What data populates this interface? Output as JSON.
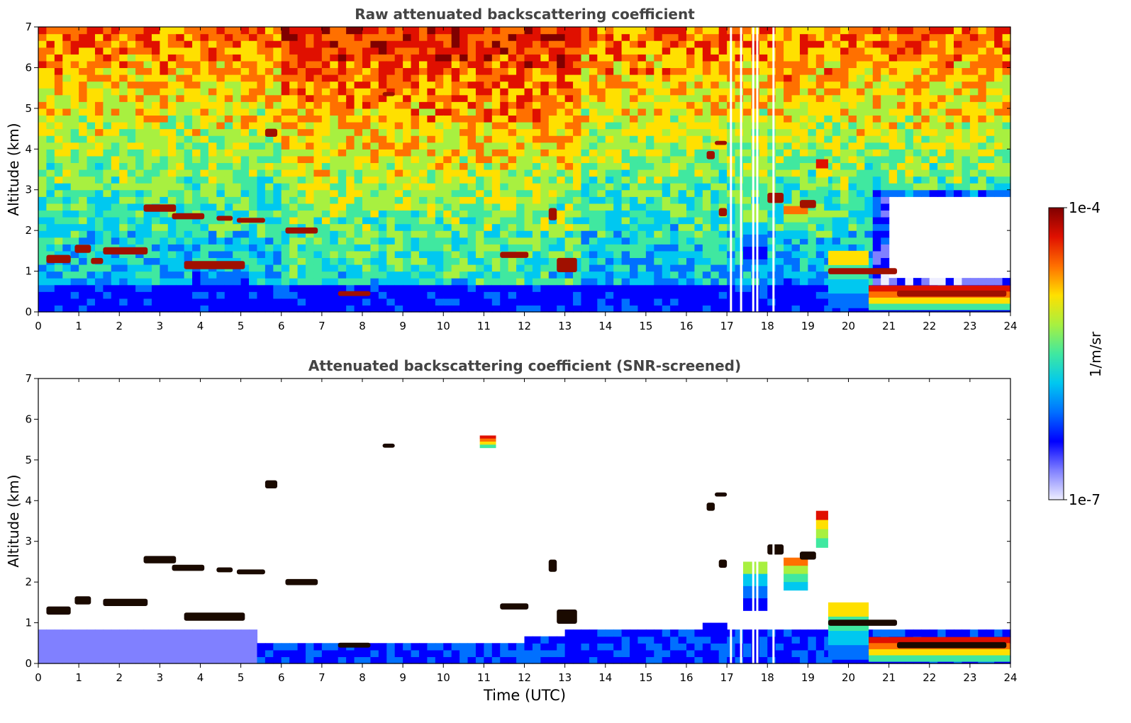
{
  "chart_data": [
    {
      "type": "heatmap",
      "title": "Raw attenuated backscattering coefficient",
      "xlabel": "",
      "ylabel": "Altitude (km)",
      "xlim": [
        0,
        24
      ],
      "ylim": [
        0,
        7
      ],
      "x_ticks": [
        "0",
        "1",
        "2",
        "3",
        "4",
        "5",
        "6",
        "7",
        "8",
        "9",
        "10",
        "11",
        "12",
        "13",
        "14",
        "15",
        "16",
        "17",
        "18",
        "19",
        "20",
        "21",
        "22",
        "23",
        "24"
      ],
      "y_ticks": [
        "0",
        "1",
        "2",
        "3",
        "4",
        "5",
        "6",
        "7"
      ],
      "background": "noisy",
      "features": [
        {
          "x0": 0.2,
          "x1": 0.8,
          "y": 1.3,
          "h": 0.2,
          "level": 1.0
        },
        {
          "x0": 0.9,
          "x1": 1.3,
          "y": 1.55,
          "h": 0.2,
          "level": 1.0
        },
        {
          "x0": 1.3,
          "x1": 1.6,
          "y": 1.25,
          "h": 0.15,
          "level": 1.0
        },
        {
          "x0": 1.6,
          "x1": 2.7,
          "y": 1.5,
          "h": 0.18,
          "level": 1.0
        },
        {
          "x0": 2.6,
          "x1": 3.4,
          "y": 2.55,
          "h": 0.18,
          "level": 1.0
        },
        {
          "x0": 3.3,
          "x1": 4.1,
          "y": 2.35,
          "h": 0.15,
          "level": 1.0
        },
        {
          "x0": 4.4,
          "x1": 4.8,
          "y": 2.3,
          "h": 0.12,
          "level": 1.0
        },
        {
          "x0": 4.9,
          "x1": 5.6,
          "y": 2.25,
          "h": 0.12,
          "level": 1.0
        },
        {
          "x0": 3.6,
          "x1": 5.1,
          "y": 1.15,
          "h": 0.2,
          "level": 1.0
        },
        {
          "x0": 5.6,
          "x1": 5.9,
          "y": 4.4,
          "h": 0.2,
          "level": 1.0
        },
        {
          "x0": 6.1,
          "x1": 6.9,
          "y": 2.0,
          "h": 0.15,
          "level": 1.0
        },
        {
          "x0": 7.4,
          "x1": 8.2,
          "y": 0.45,
          "h": 0.12,
          "level": 1.0
        },
        {
          "x0": 8.5,
          "x1": 8.8,
          "y": 5.35,
          "h": 0.1,
          "level": 1.0
        },
        {
          "x0": 11.4,
          "x1": 12.1,
          "y": 1.4,
          "h": 0.15,
          "level": 1.0
        },
        {
          "x0": 12.6,
          "x1": 12.8,
          "y": 2.4,
          "h": 0.3,
          "level": 1.0
        },
        {
          "x0": 12.8,
          "x1": 13.3,
          "y": 1.15,
          "h": 0.35,
          "level": 1.0
        },
        {
          "x0": 16.5,
          "x1": 16.7,
          "y": 3.85,
          "h": 0.2,
          "level": 1.0
        },
        {
          "x0": 16.7,
          "x1": 17.0,
          "y": 4.15,
          "h": 0.1,
          "level": 1.0
        },
        {
          "x0": 16.8,
          "x1": 17.0,
          "y": 2.45,
          "h": 0.2,
          "level": 1.0
        },
        {
          "x0": 17.4,
          "x1": 18.0,
          "y": 1.9,
          "h": 1.2,
          "level": 0.55
        },
        {
          "x0": 18.0,
          "x1": 18.4,
          "y": 2.8,
          "h": 0.25,
          "level": 1.0
        },
        {
          "x0": 18.4,
          "x1": 19.0,
          "y": 2.2,
          "h": 0.8,
          "level": 0.75
        },
        {
          "x0": 18.8,
          "x1": 19.2,
          "y": 2.65,
          "h": 0.2,
          "level": 1.0
        },
        {
          "x0": 19.2,
          "x1": 19.5,
          "y": 3.3,
          "h": 0.9,
          "level": 0.85
        },
        {
          "x0": 19.5,
          "x1": 20.5,
          "y": 0.8,
          "h": 1.4,
          "level": 0.65
        },
        {
          "x0": 19.5,
          "x1": 21.2,
          "y": 1.0,
          "h": 0.15,
          "level": 1.0
        },
        {
          "x0": 20.5,
          "x1": 24.0,
          "y": 0.35,
          "h": 0.6,
          "level": 0.9
        },
        {
          "x0": 21.2,
          "x1": 23.9,
          "y": 0.45,
          "h": 0.15,
          "level": 1.0
        }
      ],
      "data_gaps_x": [
        17.1,
        17.35,
        17.65,
        17.75,
        18.15
      ]
    },
    {
      "type": "heatmap",
      "title": "Attenuated backscattering coefficient (SNR-screened)",
      "xlabel": "Time (UTC)",
      "ylabel": "Altitude (km)",
      "xlim": [
        0,
        24
      ],
      "ylim": [
        0,
        7
      ],
      "x_ticks": [
        "0",
        "1",
        "2",
        "3",
        "4",
        "5",
        "6",
        "7",
        "8",
        "9",
        "10",
        "11",
        "12",
        "13",
        "14",
        "15",
        "16",
        "17",
        "18",
        "19",
        "20",
        "21",
        "22",
        "23",
        "24"
      ],
      "y_ticks": [
        "0",
        "1",
        "2",
        "3",
        "4",
        "5",
        "6",
        "7"
      ],
      "background": "screened",
      "features": [
        {
          "x0": 0.2,
          "x1": 0.8,
          "y": 1.3,
          "h": 0.2,
          "level": 1.0
        },
        {
          "x0": 0.9,
          "x1": 1.3,
          "y": 1.55,
          "h": 0.2,
          "level": 1.0
        },
        {
          "x0": 1.6,
          "x1": 2.7,
          "y": 1.5,
          "h": 0.18,
          "level": 1.0
        },
        {
          "x0": 2.6,
          "x1": 3.4,
          "y": 2.55,
          "h": 0.18,
          "level": 1.0
        },
        {
          "x0": 3.3,
          "x1": 4.1,
          "y": 2.35,
          "h": 0.15,
          "level": 1.0
        },
        {
          "x0": 4.4,
          "x1": 4.8,
          "y": 2.3,
          "h": 0.12,
          "level": 1.0
        },
        {
          "x0": 4.9,
          "x1": 5.6,
          "y": 2.25,
          "h": 0.12,
          "level": 1.0
        },
        {
          "x0": 3.6,
          "x1": 5.1,
          "y": 1.15,
          "h": 0.2,
          "level": 1.0
        },
        {
          "x0": 5.6,
          "x1": 5.9,
          "y": 4.4,
          "h": 0.2,
          "level": 1.0
        },
        {
          "x0": 6.1,
          "x1": 6.9,
          "y": 2.0,
          "h": 0.15,
          "level": 1.0
        },
        {
          "x0": 7.4,
          "x1": 8.2,
          "y": 0.45,
          "h": 0.12,
          "level": 1.0
        },
        {
          "x0": 8.5,
          "x1": 8.8,
          "y": 5.35,
          "h": 0.1,
          "level": 1.0
        },
        {
          "x0": 10.9,
          "x1": 11.3,
          "y": 5.45,
          "h": 0.3,
          "level": 0.9
        },
        {
          "x0": 11.4,
          "x1": 12.1,
          "y": 1.4,
          "h": 0.15,
          "level": 1.0
        },
        {
          "x0": 12.6,
          "x1": 12.8,
          "y": 2.4,
          "h": 0.3,
          "level": 1.0
        },
        {
          "x0": 12.8,
          "x1": 13.3,
          "y": 1.15,
          "h": 0.35,
          "level": 1.0
        },
        {
          "x0": 16.5,
          "x1": 16.7,
          "y": 3.85,
          "h": 0.2,
          "level": 1.0
        },
        {
          "x0": 16.7,
          "x1": 17.0,
          "y": 4.15,
          "h": 0.1,
          "level": 1.0
        },
        {
          "x0": 16.8,
          "x1": 17.0,
          "y": 2.45,
          "h": 0.2,
          "level": 1.0
        },
        {
          "x0": 17.4,
          "x1": 18.0,
          "y": 1.9,
          "h": 1.2,
          "level": 0.55
        },
        {
          "x0": 18.0,
          "x1": 18.4,
          "y": 2.8,
          "h": 0.25,
          "level": 1.0
        },
        {
          "x0": 18.4,
          "x1": 19.0,
          "y": 2.2,
          "h": 0.8,
          "level": 0.75
        },
        {
          "x0": 18.8,
          "x1": 19.2,
          "y": 2.65,
          "h": 0.2,
          "level": 1.0
        },
        {
          "x0": 19.2,
          "x1": 19.5,
          "y": 3.3,
          "h": 0.9,
          "level": 0.85
        },
        {
          "x0": 19.5,
          "x1": 20.5,
          "y": 0.8,
          "h": 1.4,
          "level": 0.65
        },
        {
          "x0": 19.5,
          "x1": 21.2,
          "y": 1.0,
          "h": 0.15,
          "level": 1.0
        },
        {
          "x0": 20.5,
          "x1": 24.0,
          "y": 0.35,
          "h": 0.6,
          "level": 0.9
        },
        {
          "x0": 21.2,
          "x1": 23.9,
          "y": 0.45,
          "h": 0.15,
          "level": 1.0
        }
      ],
      "data_gaps_x": [
        17.1,
        17.35,
        17.65,
        17.75,
        18.15
      ]
    }
  ],
  "colorbar": {
    "label": "1/m/sr",
    "min_label": "1e-7",
    "max_label": "1e-4",
    "scale": "log",
    "colors": [
      "#eeeeff",
      "#8080ff",
      "#0000ff",
      "#0070ff",
      "#00c8f0",
      "#40e8a0",
      "#a8f040",
      "#ffe000",
      "#ff7000",
      "#e01000",
      "#800000"
    ]
  }
}
